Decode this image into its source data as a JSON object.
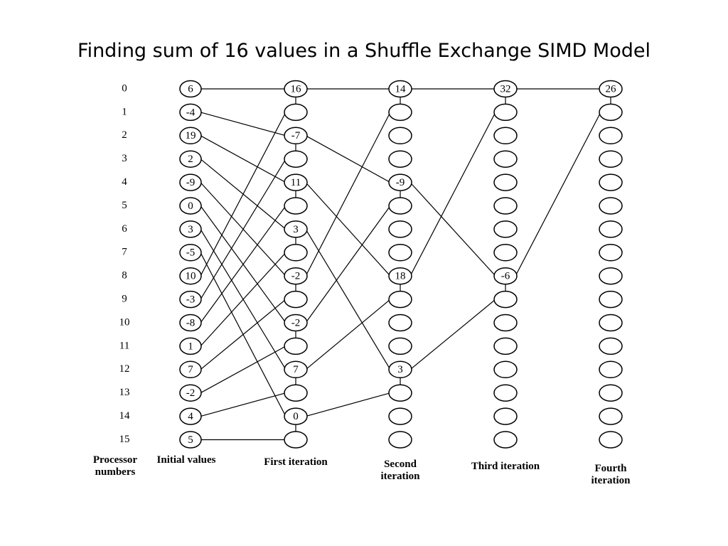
{
  "title": "Finding sum of 16 values in a Shuffle Exchange SIMD Model",
  "processor_numbers": {
    "label": "Processor numbers",
    "values": [
      "0",
      "1",
      "2",
      "3",
      "4",
      "5",
      "6",
      "7",
      "8",
      "9",
      "10",
      "11",
      "12",
      "13",
      "14",
      "15"
    ]
  },
  "columns": [
    {
      "label": "Initial values",
      "nodes": [
        "6",
        "-4",
        "19",
        "2",
        "-9",
        "0",
        "3",
        "-5",
        "10",
        "-3",
        "-8",
        "1",
        "7",
        "-2",
        "4",
        "5"
      ]
    },
    {
      "label": "First iteration",
      "nodes": [
        "16",
        null,
        "-7",
        null,
        "11",
        null,
        "3",
        null,
        "-2",
        null,
        "-2",
        null,
        "7",
        null,
        "0",
        null
      ]
    },
    {
      "label": "Second iteration",
      "nodes": [
        "14",
        null,
        null,
        null,
        "-9",
        null,
        null,
        null,
        "18",
        null,
        null,
        null,
        "3",
        null,
        null,
        null
      ]
    },
    {
      "label": "Third iteration",
      "nodes": [
        "32",
        null,
        null,
        null,
        null,
        null,
        null,
        null,
        "-6",
        null,
        null,
        null,
        null,
        null,
        null,
        null
      ]
    },
    {
      "label": "Fourth iteration",
      "nodes": [
        "26",
        null,
        null,
        null,
        null,
        null,
        null,
        null,
        null,
        null,
        null,
        null,
        null,
        null,
        null,
        null
      ]
    }
  ]
}
